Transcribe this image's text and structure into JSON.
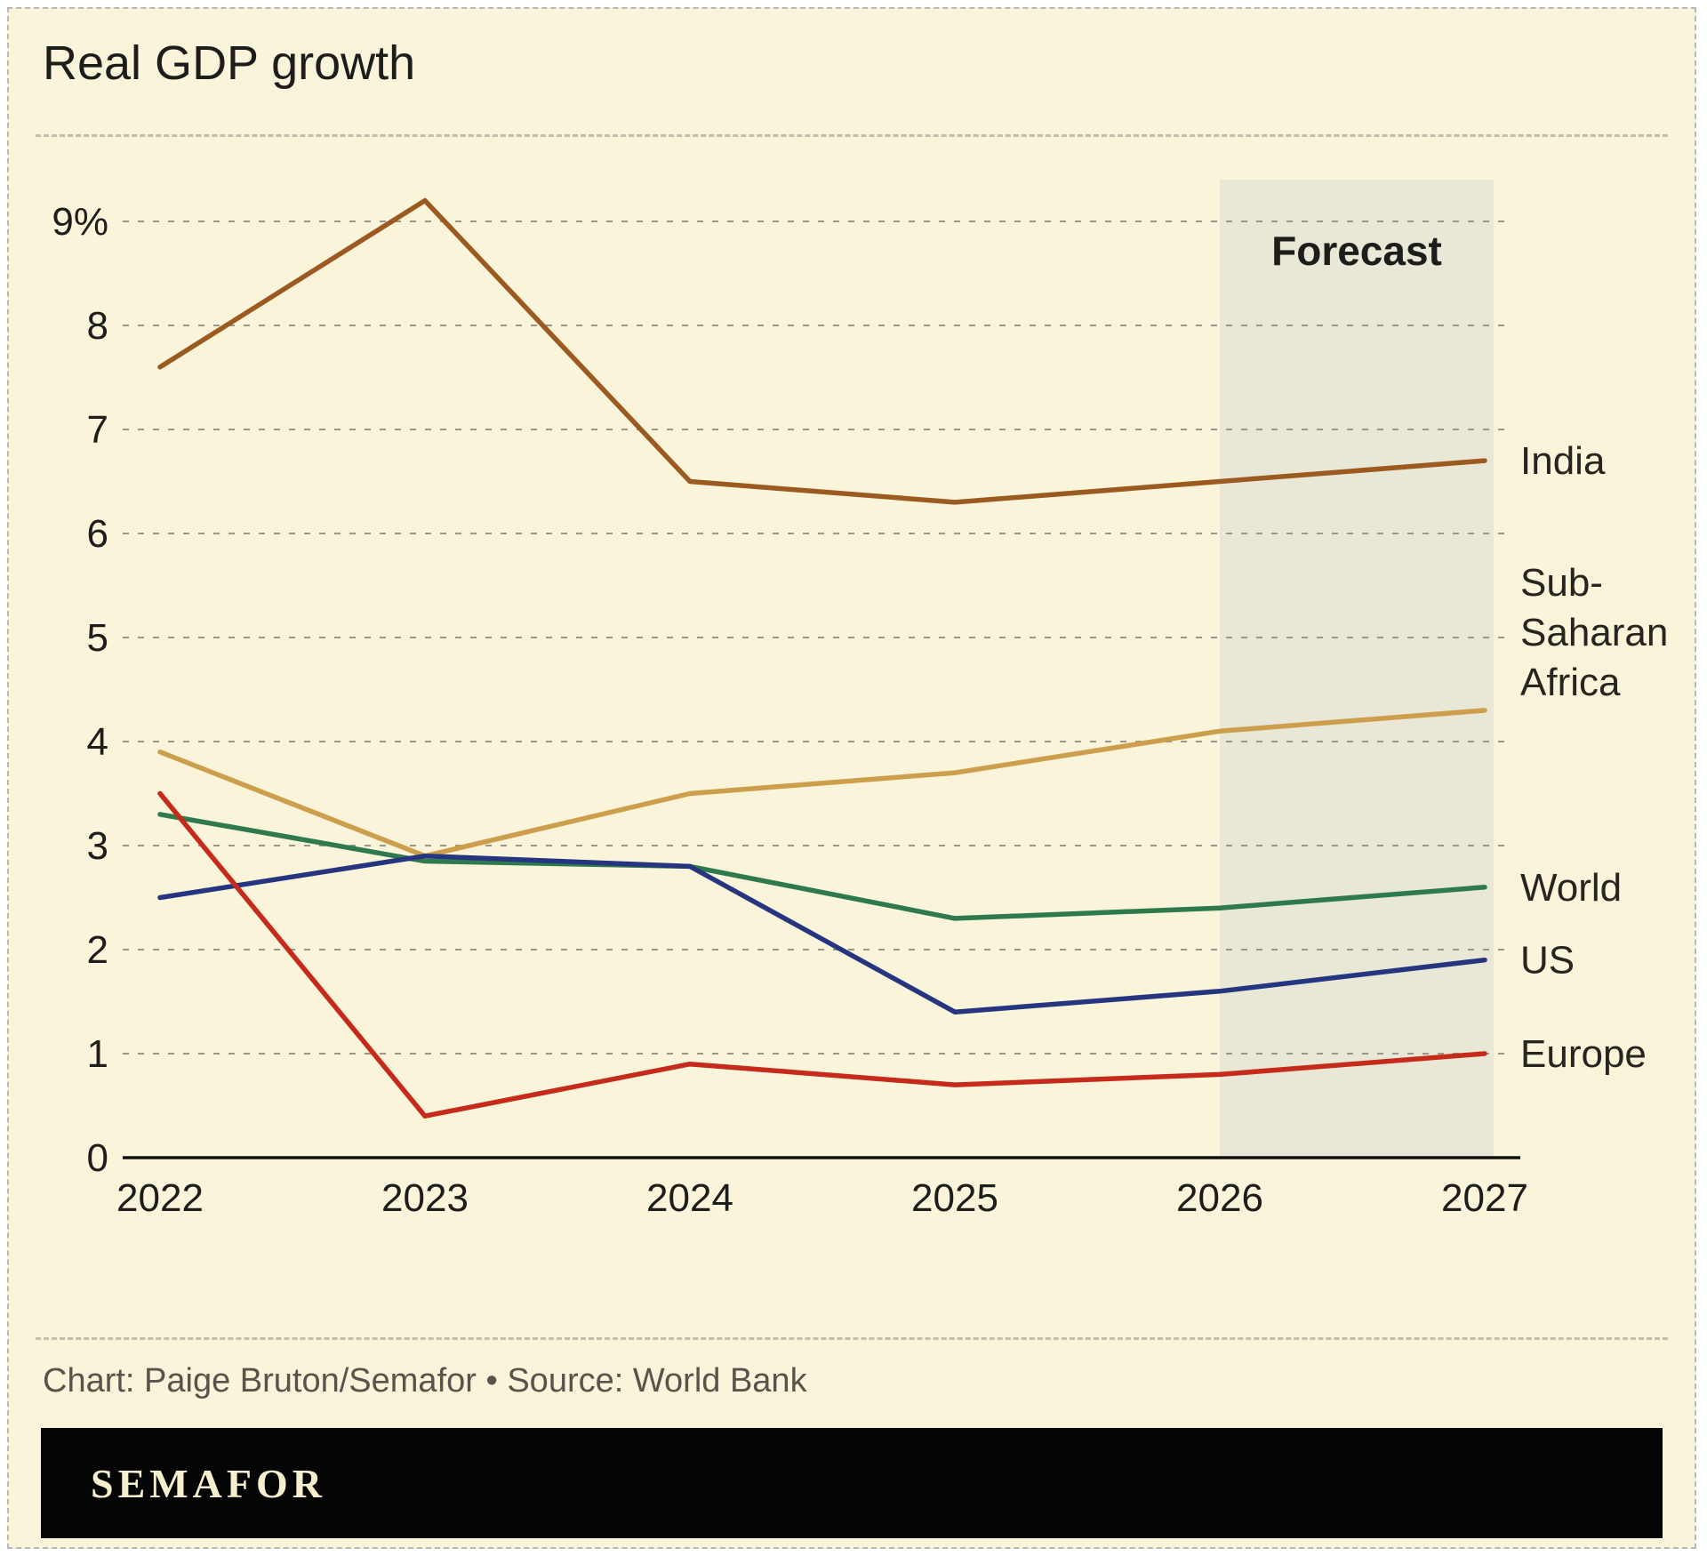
{
  "title": "Real GDP growth",
  "footer": {
    "credit": "Chart: Paige Bruton/Semafor • Source: World Bank",
    "brand": "SEMAFOR"
  },
  "colors": {
    "background": "#faf4da",
    "forecast_band": "#e9e7d6",
    "grid": "#9a968a",
    "axis": "#111111",
    "text": "#1d1d1b",
    "credit_text": "#56544b"
  },
  "chart_data": {
    "type": "line",
    "title": "Real GDP growth",
    "x": [
      2022,
      2023,
      2024,
      2025,
      2026,
      2027
    ],
    "yticks": [
      0,
      1,
      2,
      3,
      4,
      5,
      6,
      7,
      8,
      9
    ],
    "ytick_labels": [
      "0",
      "1",
      "2",
      "3",
      "4",
      "5",
      "6",
      "7",
      "8",
      "9%"
    ],
    "ylim": [
      0,
      9.4
    ],
    "grid": "horizontal-dashed",
    "legend_position": "right-of-line-ends",
    "forecast": {
      "label": "Forecast",
      "x_start": 2026,
      "x_end": 2027
    },
    "series": [
      {
        "name": "India",
        "color": "#9a5a20",
        "values": [
          7.6,
          9.2,
          6.5,
          6.3,
          6.5,
          6.7
        ],
        "label_lines": [
          "India"
        ],
        "label_offset": 0
      },
      {
        "name": "Sub-Saharan Africa",
        "color": "#cd9f4c",
        "values": [
          3.9,
          2.9,
          3.5,
          3.7,
          4.1,
          4.3
        ],
        "label_lines": [
          "Sub-",
          "Saharan",
          "Africa"
        ],
        "label_offset": -88
      },
      {
        "name": "World",
        "color": "#2f7a4c",
        "values": [
          3.3,
          2.85,
          2.8,
          2.3,
          2.4,
          2.6
        ],
        "label_lines": [
          "World"
        ],
        "label_offset": 0
      },
      {
        "name": "US",
        "color": "#25357f",
        "values": [
          2.5,
          2.9,
          2.8,
          1.4,
          1.6,
          1.9
        ],
        "label_lines": [
          "US"
        ],
        "label_offset": 0
      },
      {
        "name": "Europe",
        "color": "#c52a1a",
        "values": [
          3.5,
          0.4,
          0.9,
          0.7,
          0.8,
          1.0
        ],
        "label_lines": [
          "Europe"
        ],
        "label_offset": 0
      }
    ]
  }
}
